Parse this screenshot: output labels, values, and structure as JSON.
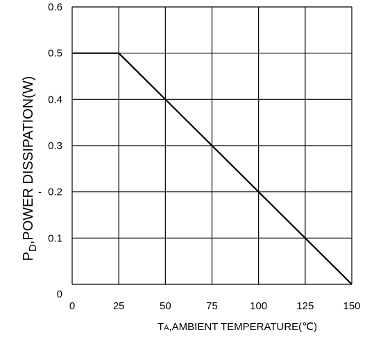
{
  "chart_data": {
    "type": "line",
    "title": "",
    "xlabel": {
      "main": "T",
      "sub": "A",
      "rest": ",AMBIENT TEMPERATURE(℃)"
    },
    "ylabel": {
      "main": "P",
      "sub": "D",
      "rest": ",POWER DISSIPATION(W)"
    },
    "xlim": [
      0,
      150
    ],
    "ylim": [
      0,
      0.6
    ],
    "x_ticks": [
      "0",
      "25",
      "50",
      "75",
      "100",
      "125",
      "150"
    ],
    "y_ticks": [
      "0",
      "0.1",
      "0.2",
      "0.3",
      "0.4",
      "0.5",
      "0.6"
    ],
    "y_tick_stray_mark": "-",
    "grid": true,
    "series": [
      {
        "x": [
          0,
          25,
          150
        ],
        "y": [
          0.5,
          0.5,
          0
        ],
        "color": "#000000"
      }
    ]
  }
}
